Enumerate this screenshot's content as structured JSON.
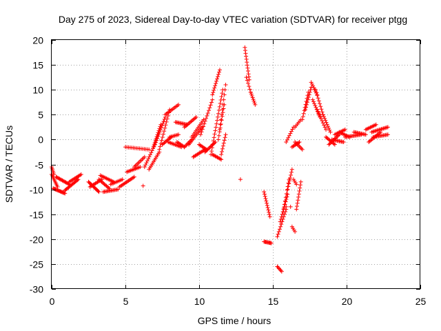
{
  "chart_data": {
    "type": "scatter",
    "title": "Day 275 of 2023, Sidereal Day-to-day VTEC variation (SDTVAR) for receiver ptgg",
    "xlabel": "GPS time / hours",
    "ylabel": "SDTVAR / TECUs",
    "xlim": [
      0,
      25
    ],
    "ylim": [
      -30,
      20
    ],
    "xticks": [
      0,
      5,
      10,
      15,
      20,
      25
    ],
    "yticks": [
      -30,
      -25,
      -20,
      -15,
      -10,
      -5,
      0,
      5,
      10,
      15,
      20
    ],
    "grid": true,
    "marker": "+",
    "series": [
      {
        "name": "SDTVAR",
        "color": "#ff0000",
        "segments": [
          {
            "x0": 0.0,
            "x1": 0.15,
            "y0": -5.5,
            "y1": -7.0,
            "n": 6
          },
          {
            "x0": 0.0,
            "x1": 0.4,
            "y0": -7.0,
            "y1": -9.5,
            "n": 10
          },
          {
            "x0": 0.1,
            "x1": 0.9,
            "y0": -9.8,
            "y1": -10.8,
            "n": 16
          },
          {
            "x0": 0.3,
            "x1": 1.2,
            "y0": -7.5,
            "y1": -9.0,
            "n": 16
          },
          {
            "x0": 0.9,
            "x1": 1.8,
            "y0": -10.2,
            "y1": -8.0,
            "n": 16
          },
          {
            "x0": 1.2,
            "x1": 2.0,
            "y0": -8.5,
            "y1": -7.0,
            "n": 12
          },
          {
            "x0": 2.5,
            "x1": 3.2,
            "y0": -8.5,
            "y1": -10.5,
            "n": 14
          },
          {
            "x0": 2.6,
            "x1": 3.4,
            "y0": -9.5,
            "y1": -8.0,
            "n": 12
          },
          {
            "x0": 3.2,
            "x1": 3.9,
            "y0": -8.0,
            "y1": -9.8,
            "n": 12
          },
          {
            "x0": 3.3,
            "x1": 4.2,
            "y0": -7.2,
            "y1": -8.5,
            "n": 12
          },
          {
            "x0": 3.5,
            "x1": 4.5,
            "y0": -10.5,
            "y1": -10.0,
            "n": 14
          },
          {
            "x0": 4.0,
            "x1": 4.8,
            "y0": -9.0,
            "y1": -8.0,
            "n": 10
          },
          {
            "x0": 4.6,
            "x1": 5.6,
            "y0": -9.5,
            "y1": -7.5,
            "n": 14
          },
          {
            "x0": 5.1,
            "x1": 6.0,
            "y0": -6.5,
            "y1": -5.5,
            "n": 12
          },
          {
            "x0": 5.6,
            "x1": 6.3,
            "y0": -5.5,
            "y1": -3.5,
            "n": 10
          },
          {
            "x0": 5.0,
            "x1": 6.6,
            "y0": -1.5,
            "y1": -2.0,
            "n": 16
          },
          {
            "x0": 6.2,
            "x1": 6.2,
            "y0": -9.3,
            "y1": -9.3,
            "n": 1
          },
          {
            "x0": 6.3,
            "x1": 7.0,
            "y0": -5.5,
            "y1": -1.0,
            "n": 12
          },
          {
            "x0": 6.6,
            "x1": 7.3,
            "y0": -6.0,
            "y1": -2.5,
            "n": 12
          },
          {
            "x0": 6.9,
            "x1": 7.4,
            "y0": -1.5,
            "y1": 3.0,
            "n": 12
          },
          {
            "x0": 7.0,
            "x1": 7.7,
            "y0": -1.0,
            "y1": 4.5,
            "n": 14
          },
          {
            "x0": 7.3,
            "x1": 8.0,
            "y0": -2.0,
            "y1": 6.0,
            "n": 14
          },
          {
            "x0": 7.7,
            "x1": 8.6,
            "y0": 5.0,
            "y1": 7.0,
            "n": 12
          },
          {
            "x0": 7.5,
            "x1": 8.1,
            "y0": -1.0,
            "y1": 0.5,
            "n": 10
          },
          {
            "x0": 7.9,
            "x1": 8.8,
            "y0": -0.5,
            "y1": -1.5,
            "n": 12
          },
          {
            "x0": 8.0,
            "x1": 8.6,
            "y0": 0.5,
            "y1": 1.0,
            "n": 8
          },
          {
            "x0": 8.4,
            "x1": 9.2,
            "y0": 3.5,
            "y1": 3.0,
            "n": 12
          },
          {
            "x0": 8.5,
            "x1": 9.0,
            "y0": -0.5,
            "y1": -1.5,
            "n": 8
          },
          {
            "x0": 9.0,
            "x1": 9.8,
            "y0": 2.5,
            "y1": 4.5,
            "n": 12
          },
          {
            "x0": 9.0,
            "x1": 9.5,
            "y0": -1.5,
            "y1": 0.0,
            "n": 8
          },
          {
            "x0": 9.3,
            "x1": 10.2,
            "y0": -1.0,
            "y1": 2.5,
            "n": 14
          },
          {
            "x0": 9.5,
            "x1": 10.3,
            "y0": 0.5,
            "y1": 4.0,
            "n": 12
          },
          {
            "x0": 9.6,
            "x1": 10.4,
            "y0": -3.5,
            "y1": -2.0,
            "n": 12
          },
          {
            "x0": 10.0,
            "x1": 10.5,
            "y0": -1.0,
            "y1": -2.0,
            "n": 8
          },
          {
            "x0": 10.1,
            "x1": 10.9,
            "y0": 1.0,
            "y1": 8.0,
            "n": 14
          },
          {
            "x0": 10.4,
            "x1": 11.1,
            "y0": -2.5,
            "y1": -0.5,
            "n": 12
          },
          {
            "x0": 10.8,
            "x1": 11.6,
            "y0": -3.0,
            "y1": 10.0,
            "n": 20
          },
          {
            "x0": 10.9,
            "x1": 11.4,
            "y0": 9.0,
            "y1": 14.0,
            "n": 12
          },
          {
            "x0": 10.9,
            "x1": 11.5,
            "y0": -3.0,
            "y1": -4.0,
            "n": 10
          },
          {
            "x0": 11.3,
            "x1": 11.7,
            "y0": 0.0,
            "y1": 7.0,
            "n": 10
          },
          {
            "x0": 11.4,
            "x1": 11.8,
            "y0": 2.0,
            "y1": 11.0,
            "n": 10
          },
          {
            "x0": 11.5,
            "x1": 11.8,
            "y0": -3.0,
            "y1": 1.0,
            "n": 8
          },
          {
            "x0": 12.8,
            "x1": 12.8,
            "y0": -8.0,
            "y1": -8.0,
            "n": 1
          },
          {
            "x0": 13.1,
            "x1": 13.4,
            "y0": 18.5,
            "y1": 12.0,
            "n": 12
          },
          {
            "x0": 13.2,
            "x1": 13.5,
            "y0": 12.5,
            "y1": 9.5,
            "n": 6
          },
          {
            "x0": 13.5,
            "x1": 13.8,
            "y0": 9.5,
            "y1": 7.0,
            "n": 8
          },
          {
            "x0": 14.4,
            "x1": 14.8,
            "y0": -10.5,
            "y1": -15.5,
            "n": 12
          },
          {
            "x0": 14.4,
            "x1": 14.9,
            "y0": -20.5,
            "y1": -20.8,
            "n": 10
          },
          {
            "x0": 15.3,
            "x1": 15.6,
            "y0": -25.5,
            "y1": -26.5,
            "n": 6
          },
          {
            "x0": 15.3,
            "x1": 15.9,
            "y0": -19.5,
            "y1": -14.0,
            "n": 12
          },
          {
            "x0": 15.5,
            "x1": 16.0,
            "y0": -16.5,
            "y1": -11.0,
            "n": 12
          },
          {
            "x0": 15.7,
            "x1": 16.1,
            "y0": -14.5,
            "y1": -8.0,
            "n": 10
          },
          {
            "x0": 16.0,
            "x1": 16.3,
            "y0": -10.0,
            "y1": -6.0,
            "n": 8
          },
          {
            "x0": 15.9,
            "x1": 16.2,
            "y0": -13.5,
            "y1": -13.5,
            "n": 2
          },
          {
            "x0": 16.3,
            "x1": 16.5,
            "y0": -17.5,
            "y1": -18.5,
            "n": 4
          },
          {
            "x0": 16.4,
            "x1": 16.6,
            "y0": -8.0,
            "y1": -9.0,
            "n": 4
          },
          {
            "x0": 16.6,
            "x1": 16.9,
            "y0": -14.0,
            "y1": -8.5,
            "n": 10
          },
          {
            "x0": 15.9,
            "x1": 16.4,
            "y0": -0.5,
            "y1": 2.5,
            "n": 8
          },
          {
            "x0": 16.3,
            "x1": 16.8,
            "y0": -1.5,
            "y1": -0.5,
            "n": 8
          },
          {
            "x0": 16.5,
            "x1": 16.9,
            "y0": 2.5,
            "y1": 4.0,
            "n": 6
          },
          {
            "x0": 16.5,
            "x1": 17.0,
            "y0": -0.5,
            "y1": -2.0,
            "n": 8
          },
          {
            "x0": 17.0,
            "x1": 17.4,
            "y0": 4.0,
            "y1": 9.5,
            "n": 10
          },
          {
            "x0": 17.2,
            "x1": 17.6,
            "y0": 6.0,
            "y1": 10.5,
            "n": 10
          },
          {
            "x0": 17.6,
            "x1": 18.0,
            "y0": 11.5,
            "y1": 9.0,
            "n": 8
          },
          {
            "x0": 17.7,
            "x1": 18.2,
            "y0": 8.0,
            "y1": 4.5,
            "n": 10
          },
          {
            "x0": 17.9,
            "x1": 18.4,
            "y0": 10.0,
            "y1": 5.0,
            "n": 10
          },
          {
            "x0": 18.0,
            "x1": 18.6,
            "y0": 6.0,
            "y1": 2.0,
            "n": 10
          },
          {
            "x0": 18.4,
            "x1": 18.9,
            "y0": 5.0,
            "y1": 1.5,
            "n": 10
          },
          {
            "x0": 18.6,
            "x1": 19.2,
            "y0": 0.5,
            "y1": -1.0,
            "n": 10
          },
          {
            "x0": 18.8,
            "x1": 19.5,
            "y0": -1.0,
            "y1": 1.0,
            "n": 12
          },
          {
            "x0": 19.0,
            "x1": 19.8,
            "y0": 0.0,
            "y1": -0.5,
            "n": 12
          },
          {
            "x0": 19.2,
            "x1": 19.9,
            "y0": 1.0,
            "y1": 2.0,
            "n": 10
          },
          {
            "x0": 19.5,
            "x1": 20.2,
            "y0": 1.5,
            "y1": 0.5,
            "n": 10
          },
          {
            "x0": 19.9,
            "x1": 21.0,
            "y0": 0.5,
            "y1": 1.0,
            "n": 16
          },
          {
            "x0": 20.5,
            "x1": 21.3,
            "y0": 1.5,
            "y1": 1.0,
            "n": 12
          },
          {
            "x0": 21.3,
            "x1": 22.0,
            "y0": 2.0,
            "y1": 3.0,
            "n": 10
          },
          {
            "x0": 21.5,
            "x1": 22.3,
            "y0": -0.5,
            "y1": 1.5,
            "n": 12
          },
          {
            "x0": 21.7,
            "x1": 22.8,
            "y0": 1.5,
            "y1": 2.5,
            "n": 16
          },
          {
            "x0": 21.8,
            "x1": 22.8,
            "y0": 0.5,
            "y1": 1.0,
            "n": 14
          }
        ]
      }
    ]
  }
}
